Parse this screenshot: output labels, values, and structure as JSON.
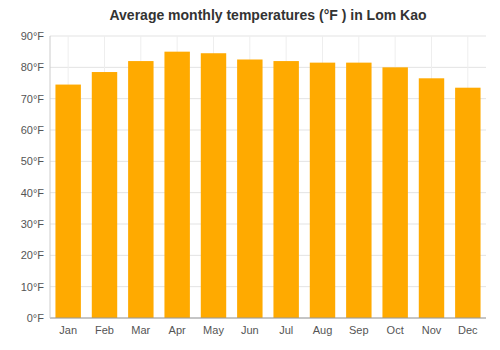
{
  "chart_data": {
    "type": "bar",
    "title": "Average monthly temperatures (°F ) in Lom Kao",
    "categories": [
      "Jan",
      "Feb",
      "Mar",
      "Apr",
      "May",
      "Jun",
      "Jul",
      "Aug",
      "Sep",
      "Oct",
      "Nov",
      "Dec"
    ],
    "values": [
      74.5,
      78.5,
      82.0,
      85.0,
      84.5,
      82.5,
      82.0,
      81.5,
      81.5,
      80.0,
      76.5,
      73.5
    ],
    "color": "#FFAA00",
    "ylim": [
      0,
      90
    ],
    "yticks": [
      {
        "value": 0,
        "label": "0°F"
      },
      {
        "value": 10,
        "label": "10°F"
      },
      {
        "value": 20,
        "label": "20°F"
      },
      {
        "value": 30,
        "label": "30°F"
      },
      {
        "value": 40,
        "label": "40°F"
      },
      {
        "value": 50,
        "label": "50°F"
      },
      {
        "value": 60,
        "label": "60°F"
      },
      {
        "value": 70,
        "label": "70°F"
      },
      {
        "value": 80,
        "label": "80°F"
      },
      {
        "value": 90,
        "label": "90°F"
      }
    ],
    "grid": true
  }
}
